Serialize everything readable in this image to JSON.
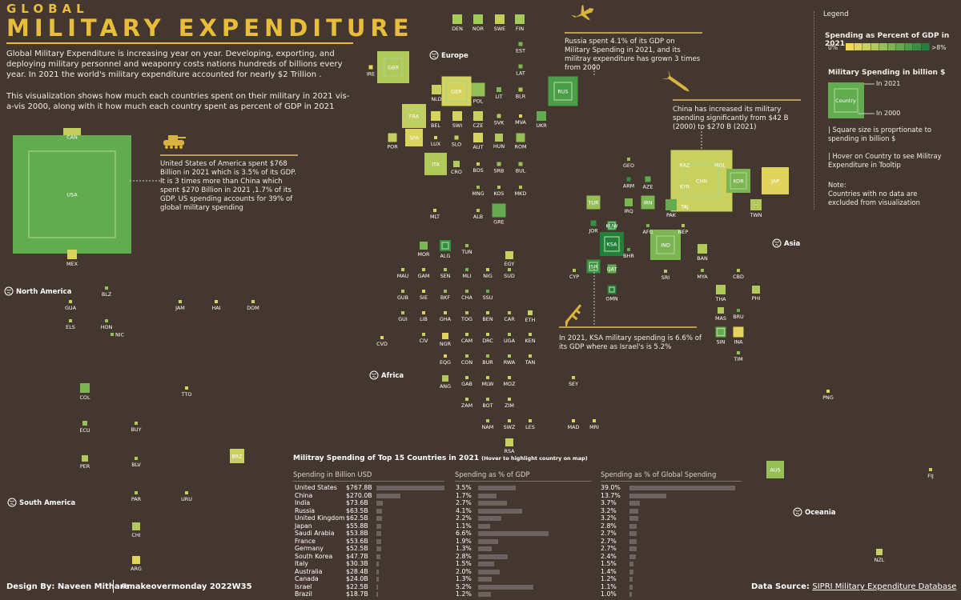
{
  "header": {
    "kicker": "GLOBAL",
    "title": "MILITARY EXPENDITURE",
    "intro_1": "Global Military Expenditure is increasing year on year. Developing, exporting, and deploying military personnel and weaponry costs nations hundreds of billions every year.  In 2021 the world's  military expenditure accounted for nearly $2 Trillion .",
    "intro_2": "This visualization shows how much each countries spent on their military in 2021 vis-a-vis 2000, along with it how much each country spent as percent of GDP in 2021"
  },
  "annotations": {
    "usa": "United States of America spent $768 Billion in 2021 which is 3.5% of its GDP. It is 3 times more than China which spent $270 Billion in 2021 ,1.7% of its GDP. US spending accounts for 39% of global military spending",
    "russia": "Russia spent 4.1% of its GDP on Military Spending in 2021, and its militray expenditure has grown 3 times from 2000",
    "china": "China has increased its military spending significantly from $42 B (2000) to $270 B (2021)",
    "ksa": "In 2021, KSA military spending is 6.6% of its GDP  where as Israel's is 5.2%"
  },
  "continents": [
    "North America",
    "South America",
    "Europe",
    "Africa",
    "Asia",
    "Oceania"
  ],
  "legend": {
    "title": "Legend",
    "gdp_title": "Spending as Percent of GDP in 2021",
    "gdp_min": "0%",
    "gdp_max": ">8%",
    "gdp_colors": [
      "#f3d65a",
      "#e0d45d",
      "#c9d05d",
      "#b0c95a",
      "#96c057",
      "#7cb653",
      "#62ab4f",
      "#4b9e49",
      "#378f43",
      "#237f3c"
    ],
    "size_title": "Military Spending in billion $",
    "size_sample": "Country",
    "in_2021": "In 2021",
    "in_2000": "In 2000",
    "note_1": "| Square size is proprtionate to spending in billion $",
    "note_2": "| Hover on Country to see Militray Expenditure in Tooltip",
    "note_3": "Note:\nCountries with no data are excluded from visualization"
  },
  "chart_data": [
    {
      "type": "table",
      "title": "Militray Spending of  Top 15 Countries  in 2021",
      "title_hint": "(Hover to highlight country on map)",
      "columns": [
        "Spending in Billion USD",
        "Spending as % of GDP",
        "Spending as % of Global Spending"
      ],
      "rows": [
        {
          "country": "United States",
          "spend": "$767.8B",
          "spend_value": 767.8,
          "gdp": "3.5%",
          "gdp_value": 3.5,
          "global": "39.0%",
          "global_value": 39.0
        },
        {
          "country": "China",
          "spend": "$270.0B",
          "spend_value": 270.0,
          "gdp": "1.7%",
          "gdp_value": 1.7,
          "global": "13.7%",
          "global_value": 13.7
        },
        {
          "country": "India",
          "spend": "$73.6B",
          "spend_value": 73.6,
          "gdp": "2.7%",
          "gdp_value": 2.7,
          "global": "3.7%",
          "global_value": 3.7
        },
        {
          "country": "Russia",
          "spend": "$63.5B",
          "spend_value": 63.5,
          "gdp": "4.1%",
          "gdp_value": 4.1,
          "global": "3.2%",
          "global_value": 3.2
        },
        {
          "country": "United Kingdom",
          "spend": "$62.5B",
          "spend_value": 62.5,
          "gdp": "2.2%",
          "gdp_value": 2.2,
          "global": "3.2%",
          "global_value": 3.2
        },
        {
          "country": "Japan",
          "spend": "$55.8B",
          "spend_value": 55.8,
          "gdp": "1.1%",
          "gdp_value": 1.1,
          "global": "2.8%",
          "global_value": 2.8
        },
        {
          "country": "Saudi Arabia",
          "spend": "$53.8B",
          "spend_value": 53.8,
          "gdp": "6.6%",
          "gdp_value": 6.6,
          "global": "2.7%",
          "global_value": 2.7
        },
        {
          "country": "France",
          "spend": "$53.6B",
          "spend_value": 53.6,
          "gdp": "1.9%",
          "gdp_value": 1.9,
          "global": "2.7%",
          "global_value": 2.7
        },
        {
          "country": "Germany",
          "spend": "$52.5B",
          "spend_value": 52.5,
          "gdp": "1.3%",
          "gdp_value": 1.3,
          "global": "2.7%",
          "global_value": 2.7
        },
        {
          "country": "South Korea",
          "spend": "$47.7B",
          "spend_value": 47.7,
          "gdp": "2.8%",
          "gdp_value": 2.8,
          "global": "2.4%",
          "global_value": 2.4
        },
        {
          "country": "Italy",
          "spend": "$30.3B",
          "spend_value": 30.3,
          "gdp": "1.5%",
          "gdp_value": 1.5,
          "global": "1.5%",
          "global_value": 1.5
        },
        {
          "country": "Australia",
          "spend": "$28.4B",
          "spend_value": 28.4,
          "gdp": "2.0%",
          "gdp_value": 2.0,
          "global": "1.4%",
          "global_value": 1.4
        },
        {
          "country": "Canada",
          "spend": "$24.0B",
          "spend_value": 24.0,
          "gdp": "1.3%",
          "gdp_value": 1.3,
          "global": "1.2%",
          "global_value": 1.2
        },
        {
          "country": "Israel",
          "spend": "$22.5B",
          "spend_value": 22.5,
          "gdp": "5.2%",
          "gdp_value": 5.2,
          "global": "1.1%",
          "global_value": 1.1
        },
        {
          "country": "Brazil",
          "spend": "$18.7B",
          "spend_value": 18.7,
          "gdp": "1.2%",
          "gdp_value": 1.2,
          "global": "1.0%",
          "global_value": 1.0
        }
      ]
    },
    {
      "type": "scatter",
      "title": "",
      "point_labels": [
        "DEN",
        "NOR",
        "SWE",
        "FIN",
        "EST",
        "IRE",
        "GBR",
        "LAT",
        "NLD",
        "GER",
        "POL",
        "LIT",
        "BLR",
        "RUS",
        "FRA",
        "BEL",
        "SWI",
        "CZE",
        "SVK",
        "MVA",
        "UKR",
        "POR",
        "SPA",
        "LUX",
        "SLO",
        "AUT",
        "HUN",
        "ROM",
        "ITA",
        "CRO",
        "BOS",
        "SRB",
        "BUL",
        "MNG",
        "KOS",
        "MKD",
        "MLT",
        "ALB",
        "GRE",
        "GEO",
        "ARM",
        "AZE",
        "KAZ",
        "MGL",
        "KYR",
        "CHN",
        "KOR",
        "JAP",
        "TAJ",
        "TWN",
        "TUR",
        "IRQ",
        "IRN",
        "PAK",
        "JOR",
        "KUW",
        "AFG",
        "NEP",
        "KSA",
        "IND",
        "BHR",
        "BAN",
        "ISR",
        "CYP",
        "QAT",
        "SRI",
        "MYA",
        "CBD",
        "OMN",
        "THA",
        "PHI",
        "MAS",
        "BRU",
        "SIN",
        "INA",
        "TIM",
        "CAN",
        "USA",
        "MEX",
        "BLZ",
        "GUA",
        "JAM",
        "HAI",
        "DOM",
        "ELS",
        "HON",
        "NIC",
        "MOR",
        "ALG",
        "TUN",
        "EGY",
        "MAU",
        "GAM",
        "SEN",
        "MLI",
        "NIG",
        "SUD",
        "GUB",
        "SIE",
        "BKF",
        "CHA",
        "SSU",
        "GUI",
        "LIB",
        "GHA",
        "TOG",
        "BEN",
        "CAR",
        "ETH",
        "CVD",
        "CIV",
        "NGR",
        "CAM",
        "DRC",
        "UGA",
        "KEN",
        "EQG",
        "CON",
        "BUR",
        "RWA",
        "TAN",
        "ANG",
        "GAB",
        "MLW",
        "MOZ",
        "SEY",
        "ZAM",
        "BOT",
        "ZIM",
        "NAM",
        "SWZ",
        "LES",
        "MAD",
        "MRI",
        "RSA",
        "COL",
        "TTO",
        "ECU",
        "BUY",
        "PER",
        "BLV",
        "BRZ",
        "PAR",
        "URU",
        "CHI",
        "ARG",
        "AUS",
        "FIJ",
        "PNG",
        "NZL"
      ]
    }
  ],
  "footer": {
    "design": "Design By: Naveen Mithare",
    "tag": "#makeovermonday 2022W35",
    "source_label": "Data Source:",
    "source_link": "SIPRI Military Expenditure Database"
  }
}
